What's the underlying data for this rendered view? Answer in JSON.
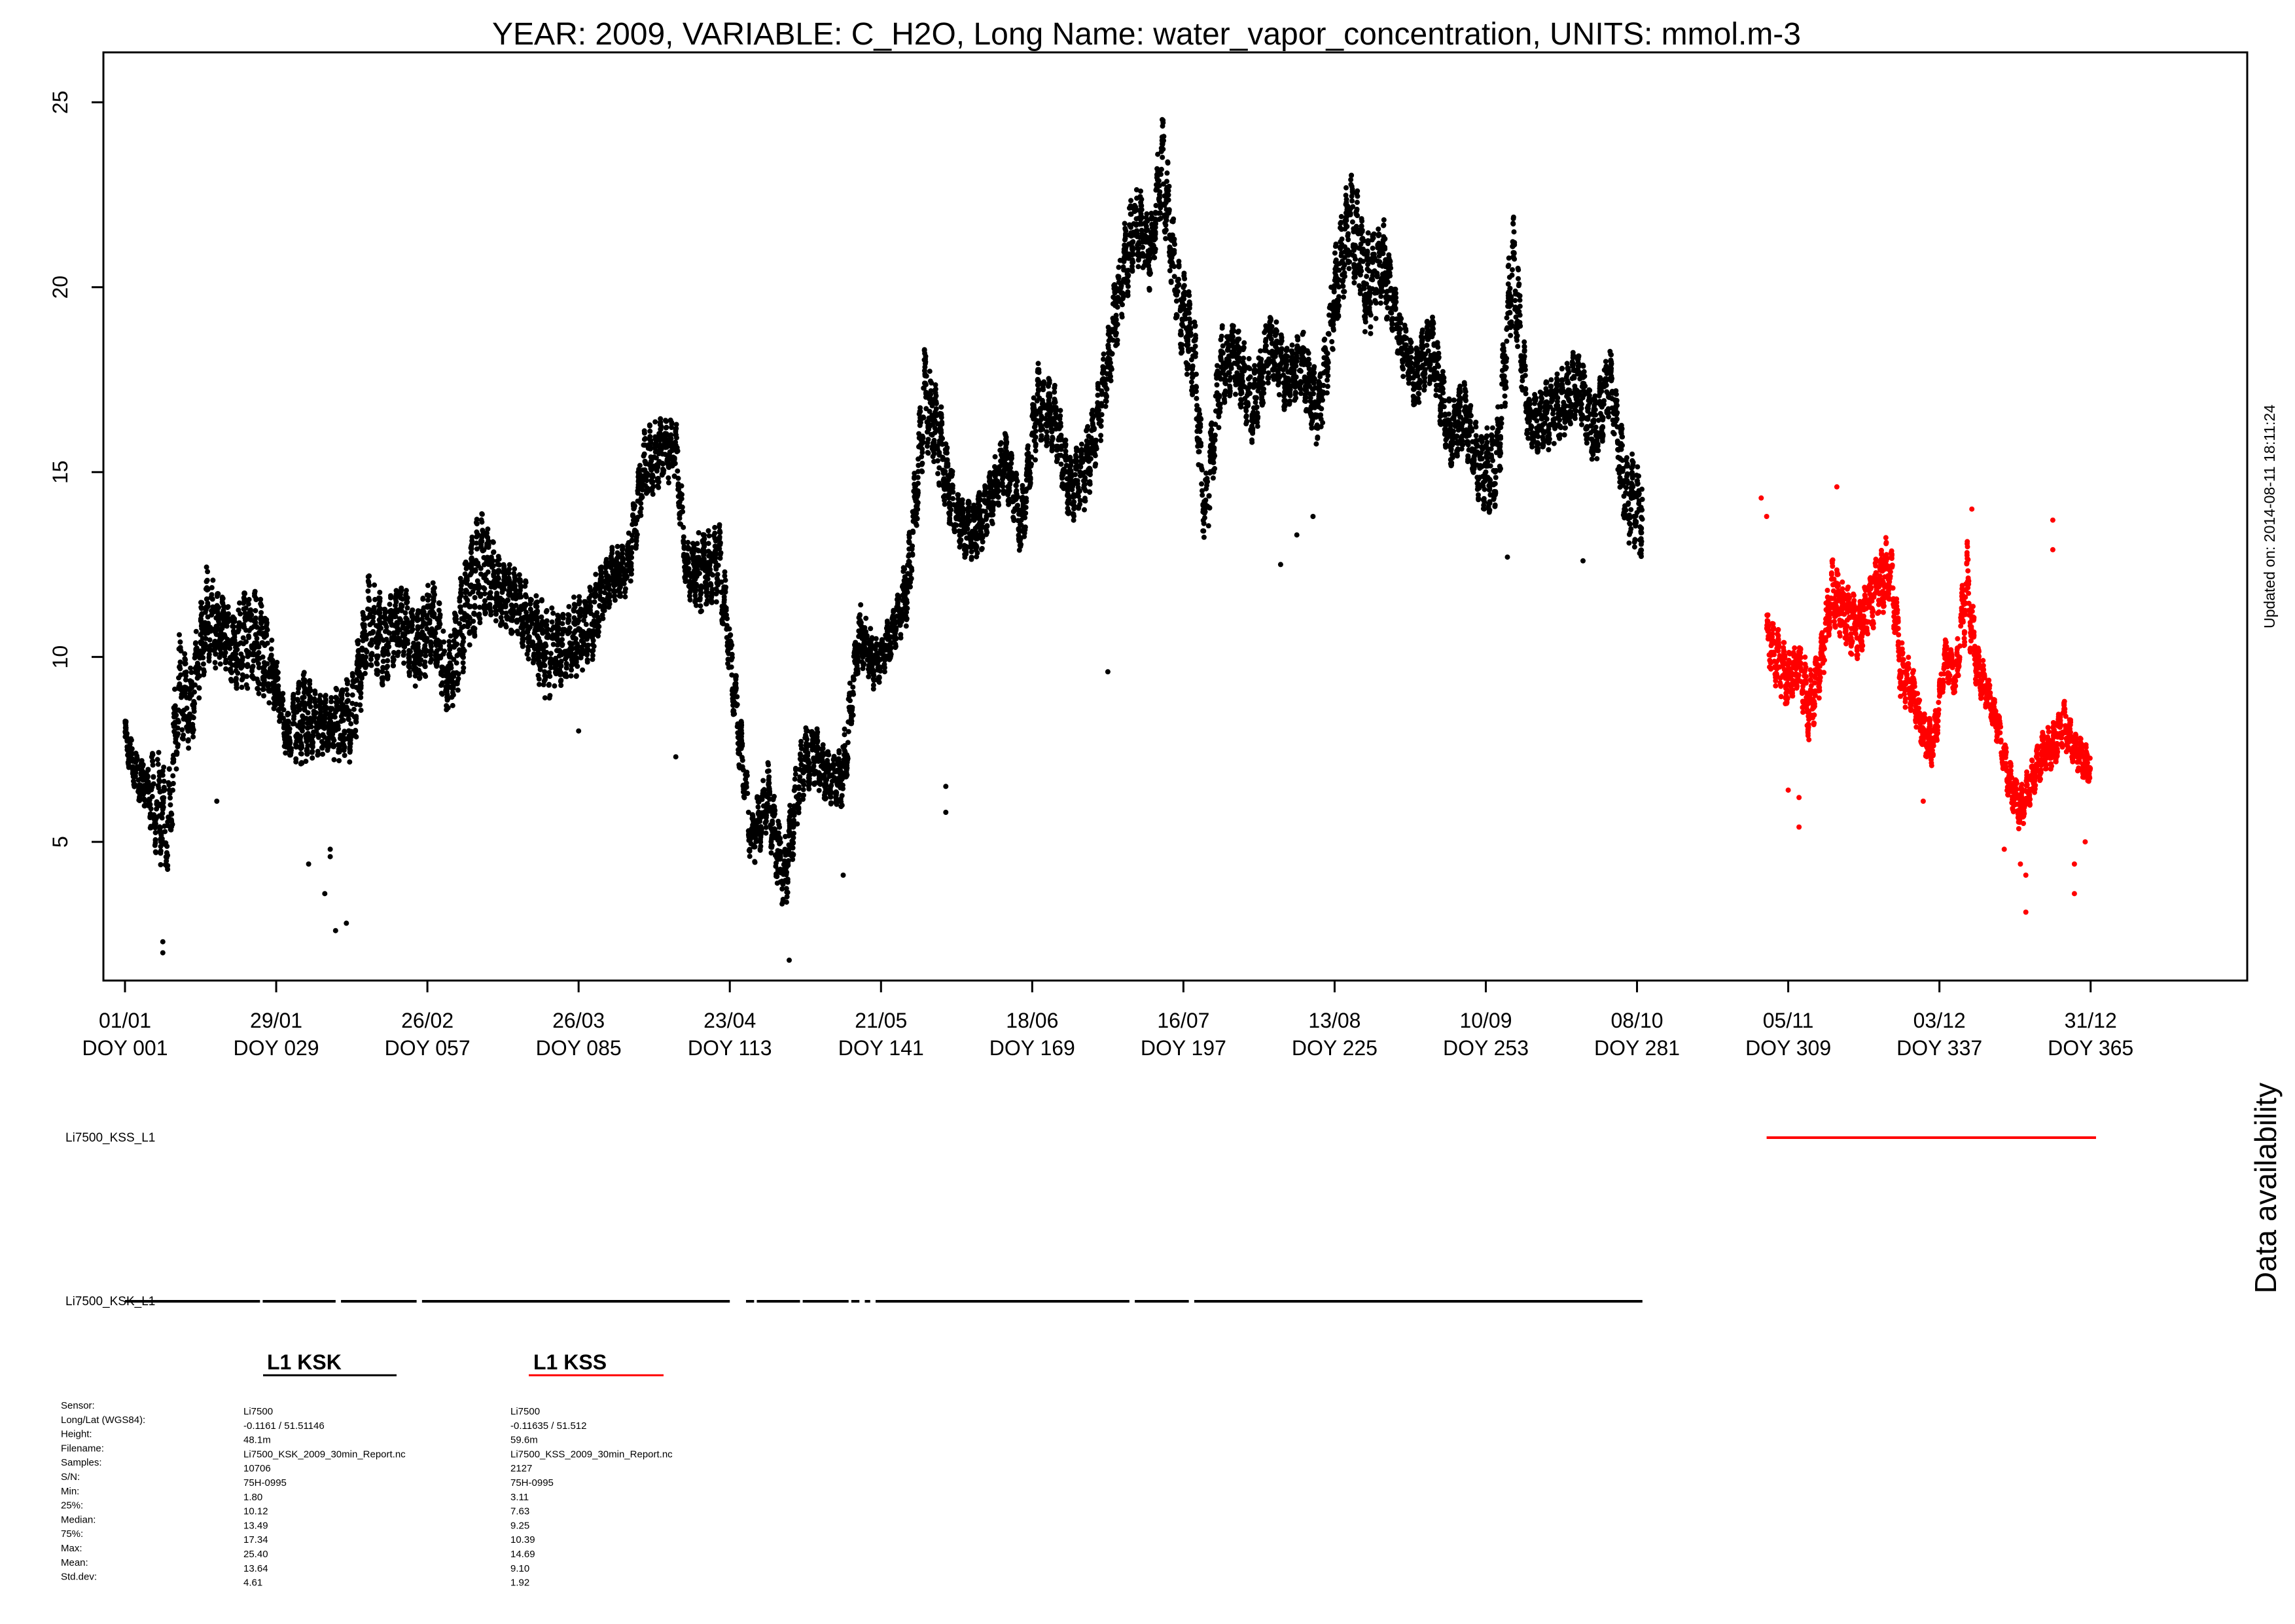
{
  "chart_data": {
    "type": "scatter",
    "title": "YEAR: 2009, VARIABLE: C_H2O, Long Name: water_vapor_concentration, UNITS: mmol.m-3",
    "xlim": [
      -3,
      394
    ],
    "ylim": [
      1.25,
      26.35
    ],
    "y_ticks": [
      5,
      10,
      15,
      20,
      25
    ],
    "x_ticks": [
      {
        "doy": 1,
        "date": "01/01",
        "label": "DOY 001"
      },
      {
        "doy": 29,
        "date": "29/01",
        "label": "DOY 029"
      },
      {
        "doy": 57,
        "date": "26/02",
        "label": "DOY 057"
      },
      {
        "doy": 85,
        "date": "26/03",
        "label": "DOY 085"
      },
      {
        "doy": 113,
        "date": "23/04",
        "label": "DOY 113"
      },
      {
        "doy": 141,
        "date": "21/05",
        "label": "DOY 141"
      },
      {
        "doy": 169,
        "date": "18/06",
        "label": "DOY 169"
      },
      {
        "doy": 197,
        "date": "16/07",
        "label": "DOY 197"
      },
      {
        "doy": 225,
        "date": "13/08",
        "label": "DOY 225"
      },
      {
        "doy": 253,
        "date": "10/09",
        "label": "DOY 253"
      },
      {
        "doy": 281,
        "date": "08/10",
        "label": "DOY 281"
      },
      {
        "doy": 309,
        "date": "05/11",
        "label": "DOY 309"
      },
      {
        "doy": 337,
        "date": "03/12",
        "label": "DOY 337"
      },
      {
        "doy": 365,
        "date": "31/12",
        "label": "DOY 365"
      }
    ],
    "updated_label": "Updated on: 2014-08-11 18:11:24",
    "series": [
      {
        "name": "L1 KSK",
        "color": "#000000",
        "envelope": [
          [
            1,
            7.4,
            8.4
          ],
          [
            3,
            6.2,
            7.5
          ],
          [
            5,
            5.8,
            7.2
          ],
          [
            7,
            4.2,
            8.0
          ],
          [
            9,
            3.5,
            6.6
          ],
          [
            11,
            7.5,
            10.8
          ],
          [
            13,
            7.3,
            9.6
          ],
          [
            16,
            9.5,
            12.5
          ],
          [
            19,
            9.8,
            11.8
          ],
          [
            21,
            9.2,
            11.2
          ],
          [
            24,
            9.0,
            12.2
          ],
          [
            27,
            8.8,
            11.5
          ],
          [
            29,
            8.5,
            10.0
          ],
          [
            31,
            7.2,
            8.5
          ],
          [
            34,
            7.0,
            9.8
          ],
          [
            37,
            7.3,
            9.0
          ],
          [
            40,
            7.1,
            9.2
          ],
          [
            43,
            7.0,
            9.5
          ],
          [
            46,
            9.6,
            12.5
          ],
          [
            49,
            9.2,
            11.5
          ],
          [
            52,
            9.8,
            12.2
          ],
          [
            55,
            9.0,
            11.2
          ],
          [
            58,
            9.8,
            12.3
          ],
          [
            61,
            8.2,
            10.5
          ],
          [
            64,
            9.7,
            12.8
          ],
          [
            67,
            11.0,
            14.2
          ],
          [
            70,
            10.8,
            12.8
          ],
          [
            73,
            10.5,
            12.5
          ],
          [
            76,
            9.8,
            12.0
          ],
          [
            79,
            8.8,
            11.5
          ],
          [
            82,
            9.2,
            11.2
          ],
          [
            85,
            9.5,
            11.8
          ],
          [
            88,
            10.0,
            12.2
          ],
          [
            91,
            11.5,
            13.0
          ],
          [
            94,
            11.5,
            13.2
          ],
          [
            97,
            14.0,
            16.2
          ],
          [
            100,
            14.5,
            16.5
          ],
          [
            103,
            14.8,
            16.5
          ],
          [
            105,
            11.5,
            13.2
          ],
          [
            108,
            11.0,
            13.5
          ],
          [
            111,
            11.5,
            13.8
          ],
          [
            117,
            4.2,
            5.8
          ],
          [
            120,
            5.2,
            7.2
          ],
          [
            123,
            2.8,
            5.0
          ],
          [
            126,
            5.8,
            7.8
          ],
          [
            128,
            6.5,
            8.5
          ],
          [
            131,
            6.0,
            7.5
          ],
          [
            134,
            5.8,
            7.8
          ],
          [
            137,
            9.8,
            11.5
          ],
          [
            140,
            9.0,
            10.5
          ],
          [
            143,
            10.0,
            11.2
          ],
          [
            146,
            10.8,
            13.0
          ],
          [
            149,
            15.5,
            18.5
          ],
          [
            152,
            14.5,
            17.0
          ],
          [
            155,
            12.8,
            14.5
          ],
          [
            158,
            12.5,
            14.2
          ],
          [
            161,
            13.2,
            15.0
          ],
          [
            164,
            14.5,
            16.2
          ],
          [
            167,
            12.5,
            14.5
          ],
          [
            170,
            15.8,
            18.0
          ],
          [
            173,
            15.5,
            17.5
          ],
          [
            176,
            13.5,
            15.5
          ],
          [
            179,
            14.0,
            16.2
          ],
          [
            182,
            16.0,
            18.0
          ],
          [
            185,
            18.5,
            21.0
          ],
          [
            188,
            20.5,
            23.0
          ],
          [
            191,
            19.8,
            22.0
          ],
          [
            193,
            22.0,
            24.8
          ],
          [
            196,
            18.5,
            21.0
          ],
          [
            199,
            16.8,
            19.5
          ],
          [
            201,
            12.5,
            14.8
          ],
          [
            204,
            16.8,
            19.0
          ],
          [
            207,
            17.0,
            19.0
          ],
          [
            210,
            15.5,
            17.8
          ],
          [
            213,
            17.5,
            19.5
          ],
          [
            216,
            16.5,
            18.5
          ],
          [
            219,
            17.0,
            19.0
          ],
          [
            222,
            15.5,
            17.5
          ],
          [
            225,
            18.5,
            21.0
          ],
          [
            228,
            20.5,
            23.5
          ],
          [
            231,
            18.5,
            21.5
          ],
          [
            234,
            19.5,
            22.0
          ],
          [
            237,
            17.8,
            19.5
          ],
          [
            240,
            16.5,
            18.5
          ],
          [
            243,
            17.5,
            19.5
          ],
          [
            246,
            15.0,
            17.0
          ],
          [
            249,
            15.5,
            17.5
          ],
          [
            252,
            14.0,
            16.0
          ],
          [
            255,
            13.8,
            16.5
          ],
          [
            258,
            19.0,
            22.5
          ],
          [
            261,
            15.5,
            17.0
          ],
          [
            264,
            15.5,
            17.5
          ],
          [
            267,
            15.8,
            17.8
          ],
          [
            270,
            16.5,
            18.5
          ],
          [
            273,
            15.0,
            17.0
          ],
          [
            276,
            16.5,
            18.5
          ],
          [
            279,
            13.0,
            15.5
          ],
          [
            282,
            12.5,
            15.5
          ]
        ],
        "outliers": [
          [
            8,
            2.0
          ],
          [
            8,
            2.3
          ],
          [
            18,
            6.1
          ],
          [
            35,
            4.4
          ],
          [
            38,
            3.6
          ],
          [
            39,
            4.8
          ],
          [
            39,
            4.6
          ],
          [
            40,
            2.6
          ],
          [
            42,
            2.8
          ],
          [
            103,
            7.3
          ],
          [
            124,
            1.8
          ],
          [
            153,
            5.8
          ],
          [
            153,
            6.5
          ],
          [
            183,
            9.6
          ],
          [
            218,
            13.3
          ],
          [
            215,
            12.5
          ],
          [
            257,
            12.7
          ],
          [
            271,
            12.6
          ],
          [
            85,
            8.0
          ],
          [
            134,
            4.1
          ],
          [
            221,
            13.8
          ]
        ]
      },
      {
        "name": "L1 KSS",
        "color": "#ff0000",
        "envelope": [
          [
            305,
            9.8,
            11.2
          ],
          [
            307,
            9.0,
            10.8
          ],
          [
            309,
            8.5,
            10.2
          ],
          [
            311,
            9.0,
            10.5
          ],
          [
            313,
            7.5,
            9.8
          ],
          [
            315,
            9.0,
            10.5
          ],
          [
            317,
            10.8,
            12.8
          ],
          [
            320,
            10.2,
            12.0
          ],
          [
            322,
            9.8,
            11.5
          ],
          [
            324,
            10.5,
            12.2
          ],
          [
            326,
            11.0,
            13.0
          ],
          [
            328,
            11.5,
            13.5
          ],
          [
            330,
            8.5,
            10.5
          ],
          [
            332,
            8.5,
            9.8
          ],
          [
            334,
            7.2,
            8.5
          ],
          [
            336,
            7.0,
            8.3
          ],
          [
            338,
            9.5,
            10.5
          ],
          [
            340,
            8.8,
            10.0
          ],
          [
            342,
            10.5,
            13.5
          ],
          [
            344,
            9.0,
            10.5
          ],
          [
            346,
            8.5,
            9.5
          ],
          [
            348,
            7.5,
            8.5
          ],
          [
            350,
            6.0,
            7.2
          ],
          [
            352,
            5.2,
            6.5
          ],
          [
            354,
            6.0,
            7.2
          ],
          [
            356,
            6.8,
            8.0
          ],
          [
            358,
            7.0,
            8.2
          ],
          [
            360,
            7.5,
            9.0
          ],
          [
            362,
            7.0,
            8.0
          ],
          [
            365,
            6.5,
            7.5
          ]
        ],
        "outliers": [
          [
            304,
            14.3
          ],
          [
            305,
            13.8
          ],
          [
            309,
            6.4
          ],
          [
            311,
            6.2
          ],
          [
            311,
            5.4
          ],
          [
            318,
            14.6
          ],
          [
            334,
            6.1
          ],
          [
            343,
            14.0
          ],
          [
            349,
            4.8
          ],
          [
            352,
            4.4
          ],
          [
            353,
            4.1
          ],
          [
            353,
            3.1
          ],
          [
            358,
            12.9
          ],
          [
            358,
            13.7
          ],
          [
            362,
            4.4
          ],
          [
            362,
            3.6
          ],
          [
            364,
            5.0
          ]
        ]
      }
    ]
  },
  "availability": {
    "title": "Data availability",
    "rows": [
      {
        "label": "Li7500_KSS_L1",
        "color": "#ff0000",
        "segments": [
          [
            305,
            366
          ]
        ]
      },
      {
        "label": "Li7500_KSK_L1",
        "color": "#000000",
        "segments": [
          [
            1,
            26
          ],
          [
            26.5,
            40
          ],
          [
            41,
            55
          ],
          [
            56,
            113
          ],
          [
            116,
            117.5
          ],
          [
            118,
            126
          ],
          [
            126.5,
            135
          ],
          [
            135.5,
            137
          ],
          [
            138,
            139
          ],
          [
            140,
            187
          ],
          [
            188,
            198
          ],
          [
            199,
            282
          ]
        ]
      }
    ]
  },
  "legend": {
    "ksk": {
      "title": "L1 KSK",
      "color": "#000000"
    },
    "kss": {
      "title": "L1 KSS",
      "color": "#ff0000"
    }
  },
  "info": {
    "labels": [
      "Sensor:",
      "Long/Lat (WGS84):",
      "Height:",
      "Filename:",
      "Samples:",
      "S/N:",
      "Min:",
      "25%:",
      "Median:",
      "75%:",
      "Max:",
      "Mean:",
      "Std.dev:"
    ],
    "ksk": [
      "Li7500",
      "-0.1161 / 51.51146",
      "48.1m",
      "Li7500_KSK_2009_30min_Report.nc",
      "10706",
      "75H-0995",
      "1.80",
      "10.12",
      "13.49",
      "17.34",
      "25.40",
      "13.64",
      "4.61"
    ],
    "kss": [
      "Li7500",
      "-0.11635 / 51.512",
      "59.6m",
      "Li7500_KSS_2009_30min_Report.nc",
      "2127",
      "75H-0995",
      "3.11",
      "7.63",
      "9.25",
      "10.39",
      "14.69",
      "9.10",
      "1.92"
    ]
  }
}
